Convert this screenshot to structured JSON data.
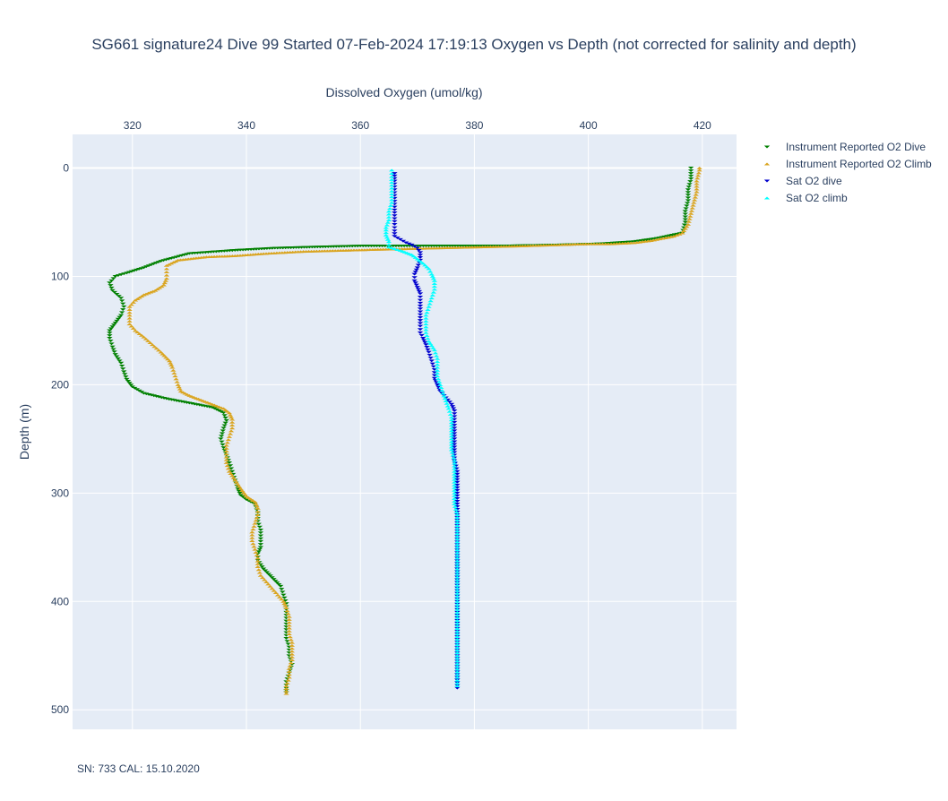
{
  "title": "SG661 signature24 Dive 99 Started 07-Feb-2024 17:19:13  Oxygen vs Depth (not corrected for salinity and depth)",
  "footnote": "SN: 733  CAL: 15.10.2020",
  "chart_data": {
    "type": "scatter",
    "xlabel": "Dissolved Oxygen (umol/kg)",
    "ylabel": "Depth (m)",
    "xlim": [
      309.5,
      426
    ],
    "ylim": [
      518,
      -31
    ],
    "y_reversed": true,
    "x_axis_position": "top",
    "xticks": [
      320,
      340,
      360,
      380,
      400,
      420
    ],
    "yticks": [
      0,
      100,
      200,
      300,
      400,
      500
    ],
    "grid": true,
    "legend_position": "top-right",
    "series": [
      {
        "name": "Instrument Reported O2 Dive",
        "color": "#008000",
        "marker": "triangle-down",
        "points": [
          [
            418,
            0
          ],
          [
            418,
            10
          ],
          [
            417.5,
            20
          ],
          [
            417.5,
            30
          ],
          [
            417,
            40
          ],
          [
            417,
            50
          ],
          [
            416.5,
            60
          ],
          [
            412,
            65
          ],
          [
            408,
            68
          ],
          [
            402,
            70
          ],
          [
            395,
            71
          ],
          [
            385,
            72
          ],
          [
            372,
            72
          ],
          [
            360,
            72
          ],
          [
            352,
            73
          ],
          [
            345,
            74
          ],
          [
            338,
            76
          ],
          [
            330,
            79
          ],
          [
            325,
            86
          ],
          [
            322,
            92
          ],
          [
            319,
            97
          ],
          [
            317,
            100
          ],
          [
            316,
            106
          ],
          [
            316.5,
            113
          ],
          [
            318,
            120
          ],
          [
            318.5,
            128
          ],
          [
            318,
            136
          ],
          [
            317,
            143
          ],
          [
            316,
            150
          ],
          [
            316,
            157
          ],
          [
            316.5,
            165
          ],
          [
            317,
            172
          ],
          [
            318,
            180
          ],
          [
            318.5,
            188
          ],
          [
            319,
            195
          ],
          [
            320,
            202
          ],
          [
            322,
            208
          ],
          [
            326,
            213
          ],
          [
            330,
            217
          ],
          [
            334,
            221
          ],
          [
            336,
            226
          ],
          [
            336.5,
            233
          ],
          [
            336,
            240
          ],
          [
            335.5,
            250
          ],
          [
            336,
            258
          ],
          [
            336.5,
            265
          ],
          [
            337,
            272
          ],
          [
            337.5,
            280
          ],
          [
            338,
            288
          ],
          [
            338.5,
            296
          ],
          [
            339,
            302
          ],
          [
            340,
            306
          ],
          [
            341.5,
            310
          ],
          [
            342,
            318
          ],
          [
            342,
            326
          ],
          [
            342.5,
            334
          ],
          [
            342.5,
            342
          ],
          [
            342.5,
            350
          ],
          [
            342,
            356
          ],
          [
            342,
            362
          ],
          [
            343,
            370
          ],
          [
            344.5,
            378
          ],
          [
            346,
            386
          ],
          [
            346.5,
            394
          ],
          [
            347,
            402
          ],
          [
            347,
            410
          ],
          [
            347,
            418
          ],
          [
            347,
            426
          ],
          [
            347,
            434
          ],
          [
            347.5,
            442
          ],
          [
            347.5,
            450
          ],
          [
            348,
            458
          ],
          [
            347.5,
            466
          ],
          [
            347,
            474
          ],
          [
            347,
            480
          ],
          [
            347,
            484
          ]
        ]
      },
      {
        "name": "Instrument Reported O2 Climb",
        "color": "#DAA520",
        "marker": "triangle-up",
        "points": [
          [
            347,
            485
          ],
          [
            347,
            478
          ],
          [
            347.5,
            470
          ],
          [
            347.5,
            462
          ],
          [
            348,
            454
          ],
          [
            348,
            446
          ],
          [
            348,
            438
          ],
          [
            347.5,
            430
          ],
          [
            347.5,
            422
          ],
          [
            347.5,
            414
          ],
          [
            347,
            406
          ],
          [
            346.5,
            400
          ],
          [
            345.5,
            394
          ],
          [
            344.5,
            388
          ],
          [
            343.5,
            382
          ],
          [
            342.5,
            376
          ],
          [
            342,
            368
          ],
          [
            342,
            360
          ],
          [
            341.5,
            352
          ],
          [
            341,
            344
          ],
          [
            341,
            336
          ],
          [
            341.5,
            328
          ],
          [
            342,
            320
          ],
          [
            342,
            314
          ],
          [
            341.5,
            308
          ],
          [
            340,
            303
          ],
          [
            339,
            296
          ],
          [
            338,
            288
          ],
          [
            337,
            280
          ],
          [
            336.5,
            272
          ],
          [
            336.5,
            264
          ],
          [
            336.5,
            256
          ],
          [
            337,
            248
          ],
          [
            337.5,
            240
          ],
          [
            337.5,
            232
          ],
          [
            337,
            226
          ],
          [
            336,
            222
          ],
          [
            334,
            218
          ],
          [
            332,
            214
          ],
          [
            330,
            210
          ],
          [
            328.5,
            206
          ],
          [
            328,
            200
          ],
          [
            327.5,
            192
          ],
          [
            327,
            184
          ],
          [
            326.5,
            178
          ],
          [
            325,
            170
          ],
          [
            323.5,
            163
          ],
          [
            322,
            156
          ],
          [
            320.5,
            150
          ],
          [
            319.5,
            144
          ],
          [
            319.5,
            136
          ],
          [
            319.5,
            128
          ],
          [
            320.5,
            122
          ],
          [
            322,
            117
          ],
          [
            324,
            113
          ],
          [
            325.5,
            108
          ],
          [
            326,
            102
          ],
          [
            326,
            96
          ],
          [
            326,
            90
          ],
          [
            328,
            85
          ],
          [
            333,
            82
          ],
          [
            338,
            81
          ],
          [
            343,
            79
          ],
          [
            350,
            77
          ],
          [
            357,
            76
          ],
          [
            364,
            75
          ],
          [
            372,
            74
          ],
          [
            380,
            73
          ],
          [
            388,
            72
          ],
          [
            394,
            71
          ],
          [
            400,
            70
          ],
          [
            404,
            70
          ],
          [
            408,
            69
          ],
          [
            411,
            67
          ],
          [
            413,
            65
          ],
          [
            415,
            63
          ],
          [
            416.5,
            60
          ],
          [
            417.5,
            52
          ],
          [
            418,
            42
          ],
          [
            418.5,
            32
          ],
          [
            419,
            22
          ],
          [
            419,
            12
          ],
          [
            419.5,
            2
          ],
          [
            419.5,
            0
          ]
        ]
      },
      {
        "name": "Sat O2 dive",
        "color": "#0000CD",
        "marker": "triangle-down",
        "points": [
          [
            366,
            5
          ],
          [
            366,
            12
          ],
          [
            366,
            20
          ],
          [
            366,
            28
          ],
          [
            366,
            36
          ],
          [
            366,
            44
          ],
          [
            366,
            52
          ],
          [
            366,
            58
          ],
          [
            366,
            63
          ],
          [
            367,
            66
          ],
          [
            368,
            69
          ],
          [
            369,
            71
          ],
          [
            370,
            74
          ],
          [
            370.5,
            78
          ],
          [
            370.5,
            85
          ],
          [
            370,
            92
          ],
          [
            369.5,
            98
          ],
          [
            369.5,
            104
          ],
          [
            370,
            110
          ],
          [
            370.5,
            116
          ],
          [
            370.5,
            122
          ],
          [
            370.5,
            130
          ],
          [
            370.5,
            138
          ],
          [
            370.5,
            146
          ],
          [
            370.5,
            152
          ],
          [
            371,
            157
          ],
          [
            371.5,
            163
          ],
          [
            372,
            170
          ],
          [
            372.5,
            178
          ],
          [
            373,
            186
          ],
          [
            373,
            194
          ],
          [
            373.5,
            200
          ],
          [
            374,
            206
          ],
          [
            375,
            212
          ],
          [
            376,
            218
          ],
          [
            376.5,
            224
          ],
          [
            376.5,
            232
          ],
          [
            376.5,
            240
          ],
          [
            376.5,
            250
          ],
          [
            376.5,
            260
          ],
          [
            376.5,
            270
          ],
          [
            377,
            280
          ],
          [
            377,
            290
          ],
          [
            377,
            300
          ],
          [
            377,
            310
          ],
          [
            377,
            320
          ],
          [
            377,
            330
          ],
          [
            377,
            340
          ],
          [
            377,
            350
          ],
          [
            377,
            360
          ],
          [
            377,
            370
          ],
          [
            377,
            380
          ],
          [
            377,
            390
          ],
          [
            377,
            400
          ],
          [
            377,
            410
          ],
          [
            377,
            420
          ],
          [
            377,
            430
          ],
          [
            377,
            440
          ],
          [
            377,
            450
          ],
          [
            377,
            460
          ],
          [
            377,
            470
          ],
          [
            377,
            480
          ]
        ]
      },
      {
        "name": "Sat O2 climb",
        "color": "#00FFFF",
        "marker": "triangle-up",
        "points": [
          [
            377,
            478
          ],
          [
            377,
            470
          ],
          [
            377,
            460
          ],
          [
            377,
            450
          ],
          [
            377,
            440
          ],
          [
            377,
            430
          ],
          [
            377,
            420
          ],
          [
            377,
            410
          ],
          [
            377,
            400
          ],
          [
            377,
            390
          ],
          [
            377,
            380
          ],
          [
            377,
            370
          ],
          [
            377,
            360
          ],
          [
            377,
            350
          ],
          [
            377,
            340
          ],
          [
            377,
            330
          ],
          [
            377,
            320
          ],
          [
            376.5,
            310
          ],
          [
            376.5,
            300
          ],
          [
            376.5,
            290
          ],
          [
            376.5,
            280
          ],
          [
            376.5,
            270
          ],
          [
            376,
            260
          ],
          [
            376,
            250
          ],
          [
            376,
            240
          ],
          [
            376,
            230
          ],
          [
            375.5,
            222
          ],
          [
            375,
            215
          ],
          [
            374.5,
            208
          ],
          [
            374,
            200
          ],
          [
            373.5,
            192
          ],
          [
            373.5,
            184
          ],
          [
            373.5,
            176
          ],
          [
            373,
            168
          ],
          [
            372,
            160
          ],
          [
            371.5,
            152
          ],
          [
            371.5,
            144
          ],
          [
            371.5,
            136
          ],
          [
            372,
            128
          ],
          [
            372.5,
            120
          ],
          [
            373,
            112
          ],
          [
            373,
            104
          ],
          [
            372.5,
            98
          ],
          [
            372,
            93
          ],
          [
            371,
            88
          ],
          [
            370,
            84
          ],
          [
            369,
            80
          ],
          [
            367,
            76
          ],
          [
            365,
            73
          ],
          [
            365,
            68
          ],
          [
            364.5,
            62
          ],
          [
            364.5,
            55
          ],
          [
            365,
            48
          ],
          [
            365,
            40
          ],
          [
            365.5,
            32
          ],
          [
            365.5,
            24
          ],
          [
            365.5,
            16
          ],
          [
            365.5,
            8
          ],
          [
            365.5,
            2
          ]
        ]
      }
    ]
  }
}
